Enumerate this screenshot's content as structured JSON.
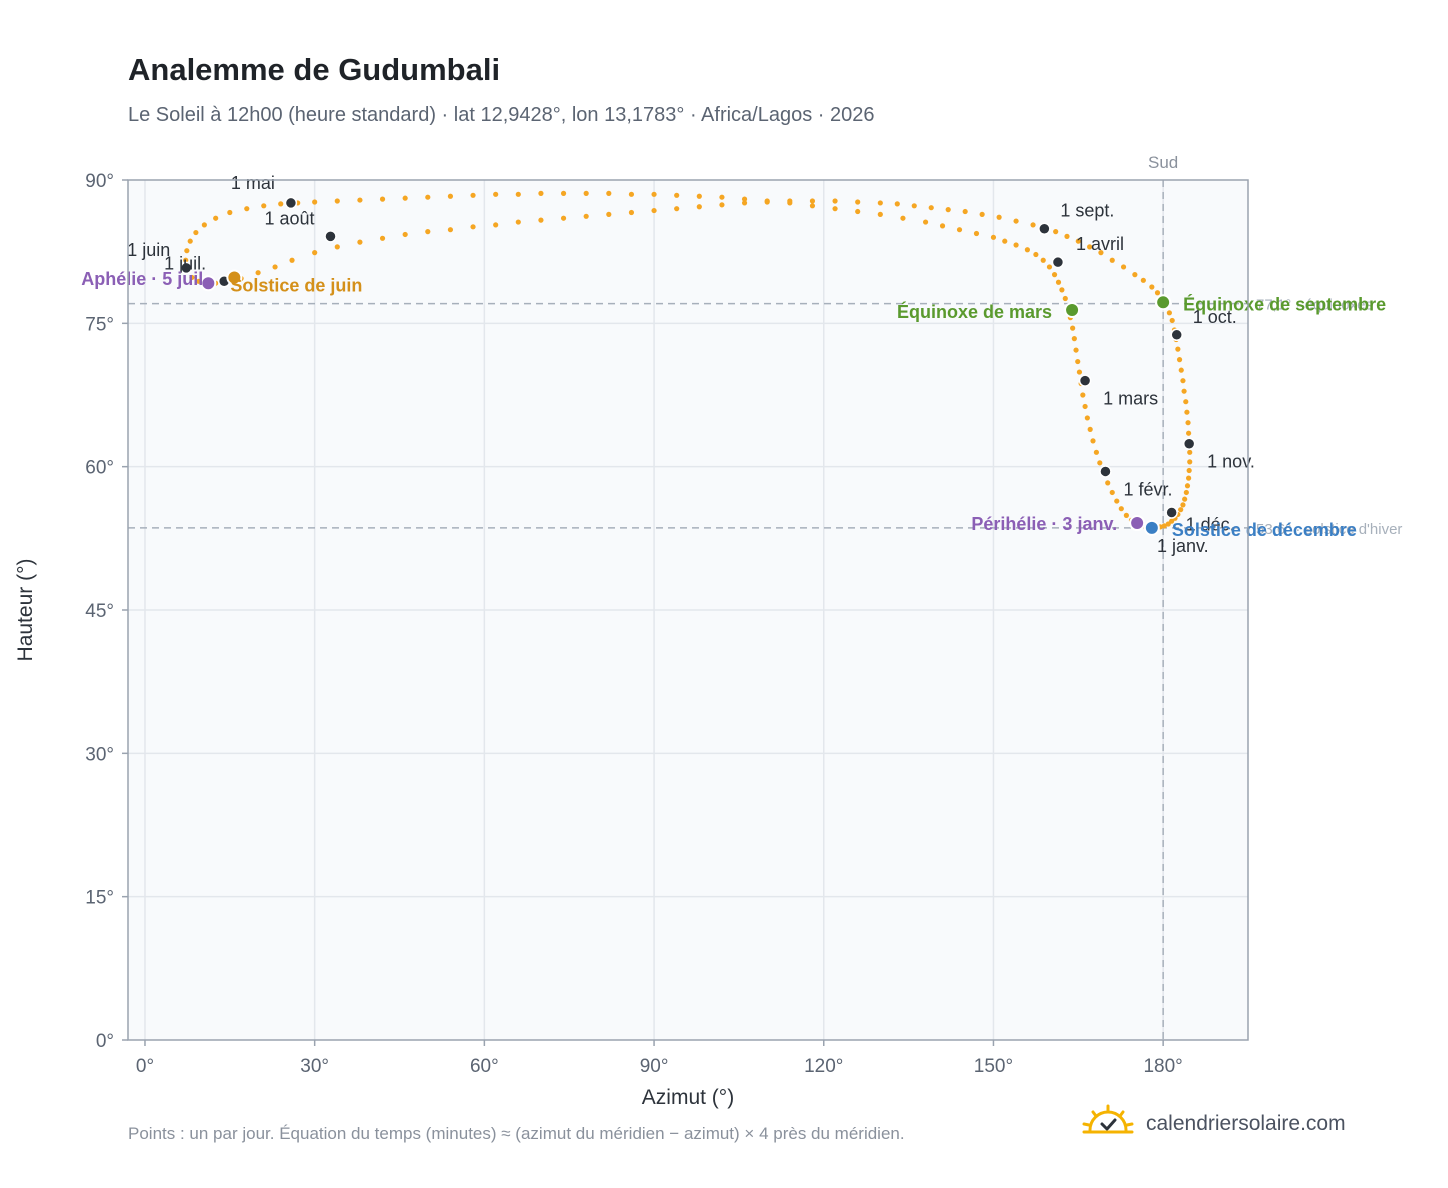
{
  "title": "Analemme de Gudumbali",
  "subtitle": "Le Soleil à 12h00 (heure standard) · lat 12,9428°, lon 13,1783° · Africa/Lagos · 2026",
  "footnote": "Points : un par jour. Équation du temps (minutes) ≈ (azimut du méridien − azimut) × 4 près du méridien.",
  "brand": {
    "name": "calendriersolaire.com",
    "icon": "sun-check-icon"
  },
  "colors": {
    "curve": "#f5a623",
    "month": "#2d333b",
    "equinox": "#5a9a2e",
    "solstice_june": "#d4901a",
    "solstice_december": "#3b7fc4",
    "aphelion": "#8b5fb5",
    "grid": "#e3e7ec",
    "plot_bg": "#f8fafc"
  },
  "chart_data": {
    "type": "scatter",
    "title": "Analemme de Gudumbali",
    "xlabel": "Azimut (°)",
    "ylabel": "Hauteur (°)",
    "xlim": [
      -3,
      195
    ],
    "ylim": [
      0,
      90
    ],
    "xticks": [
      0,
      30,
      60,
      90,
      120,
      150,
      180
    ],
    "yticks": [
      0,
      15,
      30,
      45,
      60,
      75,
      90
    ],
    "tick_suffix": "°",
    "grid": true,
    "meridian": {
      "x": 180,
      "label": "Sud"
    },
    "reference_lines": [
      {
        "y": 77.06,
        "label": "77,1° · équinoxes"
      },
      {
        "y": 53.6,
        "label": "53,6° · solstice d'hiver"
      }
    ],
    "series": [
      {
        "points": [
          [
            177.9,
            53.6
          ],
          [
            178.7,
            53.6
          ],
          [
            179.5,
            53.7
          ],
          [
            180.2,
            53.8
          ],
          [
            180.9,
            54.0
          ],
          [
            181.5,
            54.3
          ],
          [
            182.1,
            54.6
          ],
          [
            182.6,
            55.0
          ],
          [
            183.1,
            55.5
          ],
          [
            183.5,
            56.0
          ],
          [
            183.8,
            56.6
          ],
          [
            184.1,
            57.3
          ],
          [
            184.3,
            58.0
          ],
          [
            184.5,
            58.8
          ],
          [
            184.6,
            59.6
          ],
          [
            184.7,
            60.5
          ],
          [
            184.7,
            61.5
          ],
          [
            184.6,
            62.5
          ],
          [
            184.5,
            63.5
          ],
          [
            184.4,
            64.6
          ],
          [
            184.2,
            65.7
          ],
          [
            184.0,
            66.8
          ],
          [
            183.7,
            67.9
          ],
          [
            183.5,
            69.0
          ],
          [
            183.2,
            70.1
          ],
          [
            182.9,
            71.2
          ],
          [
            182.6,
            72.3
          ],
          [
            182.3,
            73.3
          ],
          [
            182.0,
            74.3
          ],
          [
            181.6,
            75.3
          ],
          [
            181.1,
            76.1
          ],
          [
            180.6,
            76.9
          ],
          [
            180.0,
            77.5
          ],
          [
            179.0,
            78.2
          ],
          [
            178.0,
            78.8
          ],
          [
            176.5,
            79.5
          ],
          [
            175.0,
            80.1
          ],
          [
            173.0,
            80.9
          ],
          [
            171.0,
            81.6
          ],
          [
            169.0,
            82.4
          ],
          [
            167.0,
            83.0
          ],
          [
            165.0,
            83.6
          ],
          [
            163.0,
            84.1
          ],
          [
            161.0,
            84.6
          ],
          [
            159.0,
            84.9
          ],
          [
            157.0,
            85.3
          ],
          [
            154.0,
            85.7
          ],
          [
            151.0,
            86.1
          ],
          [
            148.0,
            86.4
          ],
          [
            145.0,
            86.7
          ],
          [
            142.0,
            86.9
          ],
          [
            139.0,
            87.1
          ],
          [
            136.0,
            87.3
          ],
          [
            133.0,
            87.5
          ],
          [
            130.0,
            87.6
          ],
          [
            126.0,
            87.7
          ],
          [
            122.0,
            87.8
          ],
          [
            118.0,
            87.8
          ],
          [
            114.0,
            87.8
          ],
          [
            110.0,
            87.7
          ],
          [
            106.0,
            87.6
          ],
          [
            102.0,
            87.4
          ],
          [
            98.0,
            87.2
          ],
          [
            94.0,
            87.0
          ],
          [
            90.0,
            86.8
          ],
          [
            86.0,
            86.6
          ],
          [
            82.0,
            86.4
          ],
          [
            78.0,
            86.2
          ],
          [
            74.0,
            86.0
          ],
          [
            70.0,
            85.8
          ],
          [
            66.0,
            85.6
          ],
          [
            62.0,
            85.3
          ],
          [
            58.0,
            85.1
          ],
          [
            54.0,
            84.8
          ],
          [
            50.0,
            84.6
          ],
          [
            46.0,
            84.3
          ],
          [
            42.0,
            83.9
          ],
          [
            38.0,
            83.5
          ],
          [
            34.0,
            83.0
          ],
          [
            30.0,
            82.4
          ],
          [
            26.0,
            81.6
          ],
          [
            23.0,
            80.9
          ],
          [
            20.0,
            80.3
          ],
          [
            17.0,
            79.7
          ],
          [
            14.5,
            79.4
          ],
          [
            12.5,
            79.2
          ],
          [
            11.0,
            79.2
          ],
          [
            9.5,
            79.4
          ],
          [
            8.3,
            79.8
          ],
          [
            7.5,
            80.6
          ],
          [
            7.2,
            81.6
          ],
          [
            7.4,
            82.6
          ],
          [
            8.0,
            83.6
          ],
          [
            9.0,
            84.5
          ],
          [
            10.5,
            85.3
          ],
          [
            12.5,
            86.0
          ],
          [
            15.0,
            86.6
          ],
          [
            18.0,
            87.0
          ],
          [
            21.0,
            87.3
          ],
          [
            24.0,
            87.5
          ],
          [
            27.0,
            87.6
          ],
          [
            30.0,
            87.7
          ],
          [
            34.0,
            87.8
          ],
          [
            38.0,
            87.9
          ],
          [
            42.0,
            88.0
          ],
          [
            46.0,
            88.1
          ],
          [
            50.0,
            88.2
          ],
          [
            54.0,
            88.3
          ],
          [
            58.0,
            88.4
          ],
          [
            62.0,
            88.5
          ],
          [
            66.0,
            88.5
          ],
          [
            70.0,
            88.6
          ],
          [
            74.0,
            88.6
          ],
          [
            78.0,
            88.6
          ],
          [
            82.0,
            88.6
          ],
          [
            86.0,
            88.5
          ],
          [
            90.0,
            88.5
          ],
          [
            94.0,
            88.4
          ],
          [
            98.0,
            88.3
          ],
          [
            102.0,
            88.2
          ],
          [
            106.0,
            88.0
          ],
          [
            110.0,
            87.8
          ],
          [
            114.0,
            87.6
          ],
          [
            118.0,
            87.3
          ],
          [
            122.0,
            87.0
          ],
          [
            126.0,
            86.7
          ],
          [
            130.0,
            86.4
          ],
          [
            134.0,
            86.0
          ],
          [
            138.0,
            85.6
          ],
          [
            141.0,
            85.2
          ],
          [
            144.0,
            84.8
          ],
          [
            147.0,
            84.4
          ],
          [
            150.0,
            84.0
          ],
          [
            152.0,
            83.6
          ],
          [
            154.0,
            83.2
          ],
          [
            156.0,
            82.7
          ],
          [
            157.5,
            82.2
          ],
          [
            158.8,
            81.6
          ],
          [
            159.9,
            80.9
          ],
          [
            160.8,
            80.1
          ],
          [
            161.5,
            79.3
          ],
          [
            162.1,
            78.5
          ],
          [
            162.7,
            77.6
          ],
          [
            163.2,
            76.6
          ],
          [
            163.6,
            75.6
          ],
          [
            164.0,
            74.5
          ],
          [
            164.3,
            73.4
          ],
          [
            164.6,
            72.2
          ],
          [
            164.9,
            71.0
          ],
          [
            165.2,
            69.9
          ],
          [
            165.5,
            68.7
          ],
          [
            165.8,
            67.5
          ],
          [
            166.2,
            66.3
          ],
          [
            166.6,
            65.1
          ],
          [
            167.1,
            63.9
          ],
          [
            167.6,
            62.7
          ],
          [
            168.2,
            61.5
          ],
          [
            168.8,
            60.4
          ],
          [
            169.5,
            59.3
          ],
          [
            170.2,
            58.3
          ],
          [
            171.0,
            57.3
          ],
          [
            171.8,
            56.4
          ],
          [
            172.6,
            55.6
          ],
          [
            173.5,
            54.9
          ],
          [
            174.4,
            54.4
          ],
          [
            175.3,
            54.0
          ],
          [
            176.1,
            53.8
          ],
          [
            177.0,
            53.6
          ]
        ]
      }
    ],
    "months": [
      {
        "label": "1 janv.",
        "x": 178.2,
        "y": 53.6
      },
      {
        "label": "1 févr.",
        "x": 169.8,
        "y": 59.5
      },
      {
        "label": "1 mars",
        "x": 166.2,
        "y": 69.0
      },
      {
        "label": "1 avril",
        "x": 161.4,
        "y": 81.4
      },
      {
        "label": "1 mai",
        "x": 25.8,
        "y": 87.6
      },
      {
        "label": "1 juin",
        "x": 7.3,
        "y": 80.8
      },
      {
        "label": "1 juil.",
        "x": 14.0,
        "y": 79.4
      },
      {
        "label": "1 août",
        "x": 32.8,
        "y": 84.1
      },
      {
        "label": "1 sept.",
        "x": 159.0,
        "y": 84.9
      },
      {
        "label": "1 oct.",
        "x": 182.4,
        "y": 73.8
      },
      {
        "label": "1 nov.",
        "x": 184.6,
        "y": 62.4
      },
      {
        "label": "1 déc.",
        "x": 181.5,
        "y": 55.2
      }
    ],
    "events": [
      {
        "label": "Équinoxe de mars",
        "x": 163.9,
        "y": 76.4,
        "role": "equinox"
      },
      {
        "label": "Équinoxe de septembre",
        "x": 180.0,
        "y": 77.2,
        "role": "equinox"
      },
      {
        "label": "Solstice de juin",
        "x": 15.8,
        "y": 79.8,
        "role": "solstice_june"
      },
      {
        "label": "Solstice de décembre",
        "x": 178.0,
        "y": 53.6,
        "role": "solstice_december"
      },
      {
        "label": "Aphélie · 5 juil.",
        "x": 11.2,
        "y": 79.2,
        "role": "aphelion"
      },
      {
        "label": "Périhélie · 3 janv.",
        "x": 175.4,
        "y": 54.1,
        "role": "aphelion"
      }
    ]
  }
}
